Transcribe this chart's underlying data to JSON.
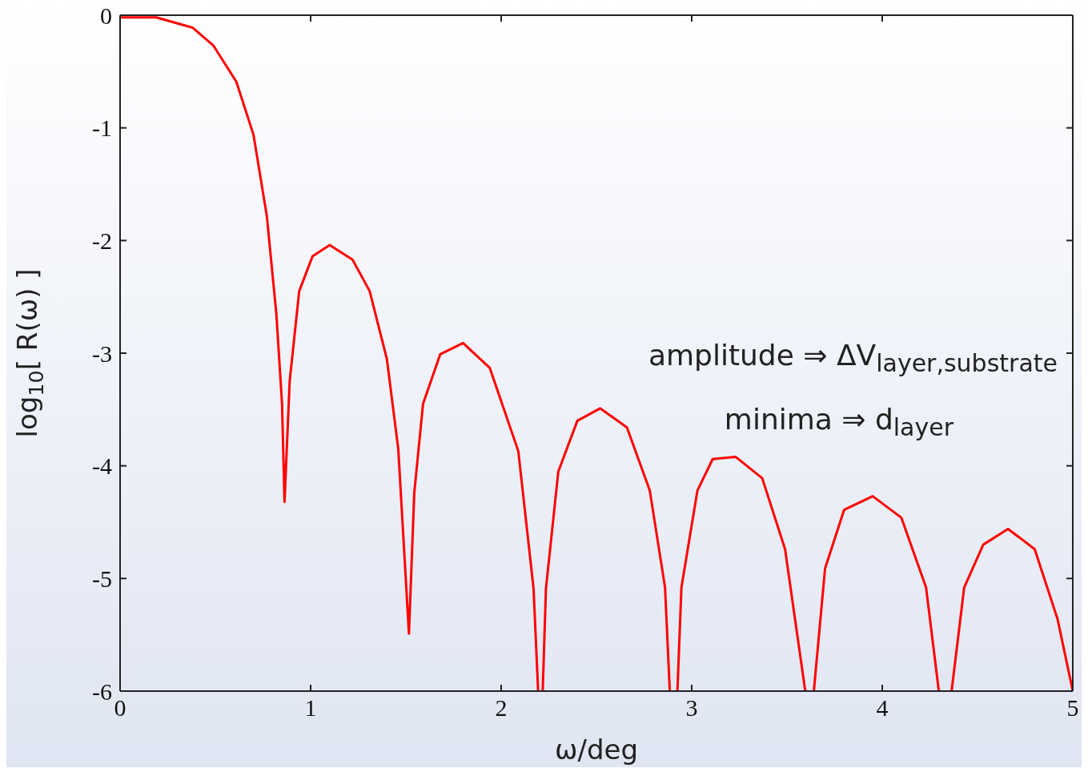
{
  "chart_data": {
    "type": "line",
    "xlabel": "ω/deg",
    "ylabel": "log$_{10}$[ R(ω) ]",
    "annotations": [
      "amplitude ⇒ ΔV$_{layer,substrate}$",
      "minima ⇒ d$_{layer}$"
    ],
    "x": [
      0.004,
      0.19,
      0.38,
      0.49,
      0.61,
      0.7,
      0.77,
      0.82,
      0.85,
      0.863,
      0.89,
      0.94,
      1.01,
      1.1,
      1.22,
      1.31,
      1.4,
      1.46,
      1.516,
      1.544,
      1.59,
      1.68,
      1.8,
      1.94,
      2.09,
      2.17,
      2.194,
      2.206,
      2.218,
      2.235,
      2.3,
      2.4,
      2.52,
      2.66,
      2.78,
      2.86,
      2.885,
      2.905,
      2.925,
      2.946,
      3.03,
      3.11,
      3.23,
      3.37,
      3.49,
      3.596,
      3.62,
      3.641,
      3.7,
      3.8,
      3.95,
      4.1,
      4.23,
      4.297,
      4.33,
      4.364,
      4.43,
      4.53,
      4.66,
      4.8,
      4.92,
      5.0
    ],
    "values": [
      -0.02,
      -0.02,
      -0.11,
      -0.27,
      -0.59,
      -1.06,
      -1.78,
      -2.65,
      -3.45,
      -4.32,
      -3.25,
      -2.45,
      -2.14,
      -2.04,
      -2.17,
      -2.45,
      -3.05,
      -3.85,
      -5.49,
      -4.24,
      -3.45,
      -3.01,
      -2.91,
      -3.13,
      -3.87,
      -5.09,
      -6,
      null,
      -6,
      -5.09,
      -4.05,
      -3.6,
      -3.49,
      -3.66,
      -4.22,
      -5.08,
      -6,
      null,
      -6,
      -5.08,
      -4.22,
      -3.94,
      -3.92,
      -4.11,
      -4.74,
      -6,
      null,
      -6,
      -4.91,
      -4.39,
      -4.27,
      -4.46,
      -5.08,
      -6,
      null,
      -6,
      -5.08,
      -4.7,
      -4.56,
      -4.74,
      -5.36,
      -6
    ],
    "color": "#ff0000",
    "xlim": [
      0,
      5
    ],
    "xticks": [
      0,
      1,
      2,
      3,
      4,
      5
    ],
    "ylim": [
      -6,
      0
    ],
    "yticks": [
      -6,
      -5,
      -4,
      -3,
      -2,
      -1,
      0
    ]
  }
}
